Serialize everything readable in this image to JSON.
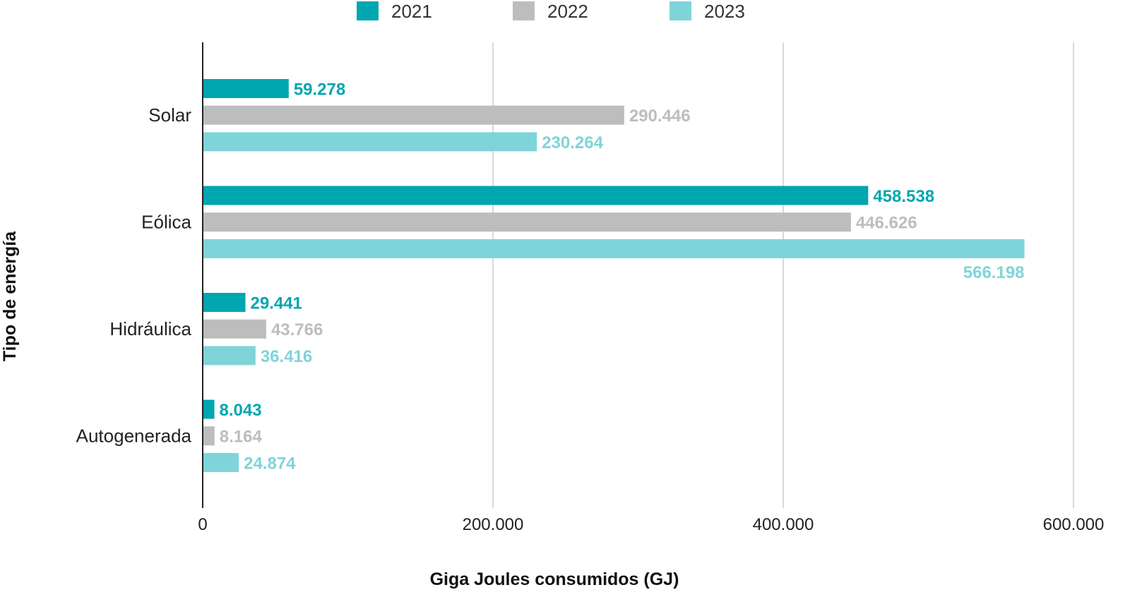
{
  "chart_data": {
    "type": "bar",
    "orientation": "horizontal",
    "categories": [
      "Solar",
      "Eólica",
      "Hidráulica",
      "Autogenerada"
    ],
    "series": [
      {
        "name": "2021",
        "color": "#00a6b0",
        "values": [
          59278,
          458538,
          29441,
          8043
        ],
        "labels": [
          "59.278",
          "458.538",
          "29.441",
          "8.043"
        ]
      },
      {
        "name": "2022",
        "color": "#bdbdbd",
        "values": [
          290446,
          446626,
          43766,
          8164
        ],
        "labels": [
          "290.446",
          "446.626",
          "43.766",
          "8.164"
        ]
      },
      {
        "name": "2023",
        "color": "#7fd4d9",
        "values": [
          230264,
          566198,
          36416,
          24874
        ],
        "labels": [
          "230.264",
          "566.198",
          "36.416",
          "24.874"
        ]
      }
    ],
    "xlim": [
      0,
      600000
    ],
    "x_ticks": [
      0,
      200000,
      400000,
      600000
    ],
    "x_tick_labels": [
      "0",
      "200.000",
      "400.000",
      "600.000"
    ],
    "xlabel": "Giga Joules consumidos (GJ)",
    "ylabel": "Tipo de energía",
    "legend_position": "top-center",
    "grid": "vertical"
  }
}
